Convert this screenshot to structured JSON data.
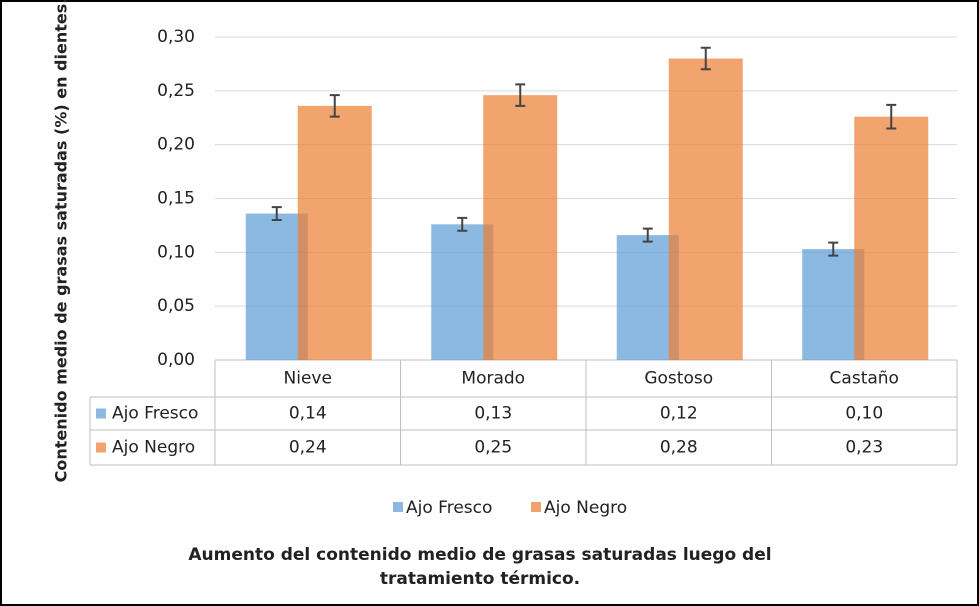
{
  "chart_data": {
    "type": "bar",
    "title": "Aumento del contenido medio de grasas saturadas luego del",
    "subtitle": "tratamiento térmico.",
    "ylabel": "Contenido medio de grasas saturadas (%) en dientes.",
    "categories": [
      "Nieve",
      "Morado",
      "Gostoso",
      "Castaño"
    ],
    "series": [
      {
        "name": "Ajo Fresco",
        "color": "#5b9bd5",
        "values": [
          0.136,
          0.126,
          0.116,
          0.103
        ],
        "errors": [
          0.006,
          0.006,
          0.006,
          0.006
        ],
        "value_labels": [
          "0,14",
          "0,13",
          "0,12",
          "0,10"
        ]
      },
      {
        "name": "Ajo Negro",
        "color": "#ed7d31",
        "values": [
          0.236,
          0.246,
          0.28,
          0.226
        ],
        "errors": [
          0.01,
          0.01,
          0.01,
          0.011
        ],
        "value_labels": [
          "0,24",
          "0,25",
          "0,28",
          "0,23"
        ]
      }
    ],
    "ylim": [
      0,
      0.3
    ],
    "yticks": [
      {
        "value": 0,
        "label": "0,00"
      },
      {
        "value": 0.05,
        "label": "0,05"
      },
      {
        "value": 0.1,
        "label": "0,10"
      },
      {
        "value": 0.15,
        "label": "0,15"
      },
      {
        "value": 0.2,
        "label": "0,20"
      },
      {
        "value": 0.25,
        "label": "0,25"
      },
      {
        "value": 0.3,
        "label": "0,30"
      }
    ],
    "grid": true,
    "legend": "bottom"
  }
}
